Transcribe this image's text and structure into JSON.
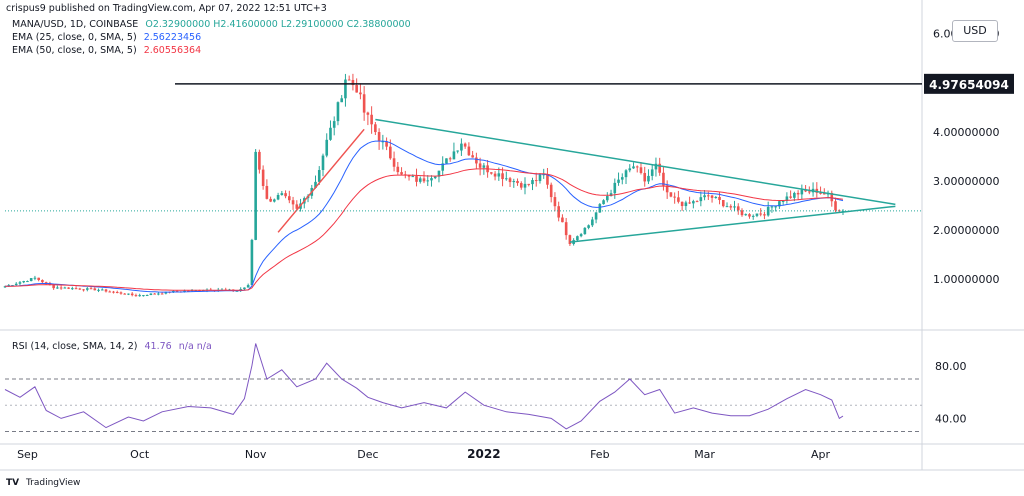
{
  "header": {
    "published": "crispus9 published on TradingView.com, Apr 07, 2022 12:51 UTC+3"
  },
  "legend": {
    "symbol": "MANA/USD, 1D, COINBASE",
    "ohlc": "O2.32900000 H2.41600000 L2.29100000 C2.38800000",
    "ema25_label": "EMA (25, close, 0, SMA, 5)",
    "ema25_value": "2.56223456",
    "ema50_label": "EMA (50, close, 0, SMA, 5)",
    "ema50_value": "2.60556364"
  },
  "rsi_legend": {
    "label": "RSI (14, close, SMA, 14, 2)",
    "value": "41.76",
    "na": "n/a n/a"
  },
  "currency": "USD",
  "resistance_label": "4.97654094",
  "footer": {
    "logo": "TV",
    "brand": "TradingView"
  },
  "colors": {
    "up": "#26a69a",
    "down": "#ef5350",
    "ema25": "#2962ff",
    "ema50": "#f23645",
    "rsi": "#7e57c2",
    "trend": "#26a69a",
    "res": "#131722"
  },
  "chart_data": [
    {
      "type": "candlestick",
      "title": "MANA/USD, 1D, COINBASE",
      "ylabel": "USD",
      "ylim": [
        0.0,
        6.4
      ],
      "yticks": [
        "1.00000000",
        "2.00000000",
        "3.00000000",
        "4.00000000",
        "6.00000000"
      ],
      "ytick_values": [
        1,
        2,
        3,
        4,
        6
      ],
      "xticks": [
        "Sep",
        "Oct",
        "Nov",
        "Dec",
        "2022",
        "Feb",
        "Mar",
        "Apr"
      ],
      "x_start": "2021-08-26",
      "x_end": "2022-04-07",
      "resistance": 4.97654094,
      "last_close": 2.388,
      "close_path": [
        [
          "2021-08-26",
          0.85
        ],
        [
          "2021-09-03",
          1.02
        ],
        [
          "2021-09-08",
          0.83
        ],
        [
          "2021-09-20",
          0.78
        ],
        [
          "2021-09-30",
          0.66
        ],
        [
          "2021-10-10",
          0.74
        ],
        [
          "2021-10-20",
          0.79
        ],
        [
          "2021-10-27",
          0.76
        ],
        [
          "2021-10-30",
          0.86
        ],
        [
          "2021-10-31",
          1.8
        ],
        [
          "2021-11-01",
          3.6
        ],
        [
          "2021-11-04",
          2.6
        ],
        [
          "2021-11-08",
          2.7
        ],
        [
          "2021-11-12",
          2.4
        ],
        [
          "2021-11-17",
          3.0
        ],
        [
          "2021-11-20",
          3.8
        ],
        [
          "2021-11-23",
          4.5
        ],
        [
          "2021-11-25",
          5.1
        ],
        [
          "2021-11-28",
          4.9
        ],
        [
          "2021-11-30",
          4.4
        ],
        [
          "2021-12-03",
          4.0
        ],
        [
          "2021-12-07",
          3.5
        ],
        [
          "2021-12-10",
          3.1
        ],
        [
          "2021-12-15",
          3.0
        ],
        [
          "2021-12-20",
          3.2
        ],
        [
          "2021-12-26",
          3.8
        ],
        [
          "2021-12-31",
          3.3
        ],
        [
          "2022-01-06",
          3.1
        ],
        [
          "2022-01-12",
          2.9
        ],
        [
          "2022-01-17",
          3.1
        ],
        [
          "2022-01-21",
          2.3
        ],
        [
          "2022-01-24",
          1.75
        ],
        [
          "2022-01-29",
          2.1
        ],
        [
          "2022-02-02",
          2.6
        ],
        [
          "2022-02-06",
          3.0
        ],
        [
          "2022-02-10",
          3.3
        ],
        [
          "2022-02-13",
          3.0
        ],
        [
          "2022-02-16",
          3.3
        ],
        [
          "2022-02-19",
          2.7
        ],
        [
          "2022-02-24",
          2.5
        ],
        [
          "2022-03-02",
          2.7
        ],
        [
          "2022-03-07",
          2.5
        ],
        [
          "2022-03-12",
          2.3
        ],
        [
          "2022-03-17",
          2.35
        ],
        [
          "2022-03-21",
          2.6
        ],
        [
          "2022-03-26",
          2.75
        ],
        [
          "2022-03-31",
          2.8
        ],
        [
          "2022-04-03",
          2.7
        ],
        [
          "2022-04-05",
          2.45
        ],
        [
          "2022-04-07",
          2.39
        ]
      ],
      "trendlines": [
        {
          "name": "upper",
          "from": [
            "2021-12-03",
            4.25
          ],
          "to": [
            "2022-04-21",
            2.52
          ]
        },
        {
          "name": "lower",
          "from": [
            "2022-01-24",
            1.75
          ],
          "to": [
            "2022-04-21",
            2.48
          ]
        },
        {
          "name": "early",
          "from": [
            "2021-11-07",
            1.95
          ],
          "to": [
            "2021-11-30",
            4.05
          ]
        }
      ]
    },
    {
      "type": "line",
      "title": "RSI (14, close, SMA, 14, 2)",
      "ylim": [
        22,
        105
      ],
      "yticks": [
        "40.00",
        "80.00"
      ],
      "ytick_values": [
        40,
        80
      ],
      "bands": [
        70,
        30
      ],
      "midline": 50,
      "last_value": 41.76,
      "series": [
        {
          "name": "RSI",
          "values": [
            [
              "2021-08-26",
              62
            ],
            [
              "2021-08-30",
              56
            ],
            [
              "2021-09-03",
              64
            ],
            [
              "2021-09-06",
              46
            ],
            [
              "2021-09-10",
              40
            ],
            [
              "2021-09-16",
              45
            ],
            [
              "2021-09-22",
              33
            ],
            [
              "2021-09-28",
              41
            ],
            [
              "2021-10-02",
              38
            ],
            [
              "2021-10-07",
              45
            ],
            [
              "2021-10-14",
              49
            ],
            [
              "2021-10-20",
              48
            ],
            [
              "2021-10-26",
              43
            ],
            [
              "2021-10-29",
              55
            ],
            [
              "2021-10-31",
              80
            ],
            [
              "2021-11-01",
              97
            ],
            [
              "2021-11-04",
              70
            ],
            [
              "2021-11-08",
              77
            ],
            [
              "2021-11-12",
              64
            ],
            [
              "2021-11-17",
              70
            ],
            [
              "2021-11-20",
              82
            ],
            [
              "2021-11-24",
              70
            ],
            [
              "2021-11-28",
              63
            ],
            [
              "2021-12-01",
              56
            ],
            [
              "2021-12-05",
              52
            ],
            [
              "2021-12-10",
              48
            ],
            [
              "2021-12-16",
              52
            ],
            [
              "2021-12-22",
              48
            ],
            [
              "2021-12-27",
              60
            ],
            [
              "2022-01-01",
              50
            ],
            [
              "2022-01-07",
              45
            ],
            [
              "2022-01-13",
              43
            ],
            [
              "2022-01-19",
              40
            ],
            [
              "2022-01-23",
              32
            ],
            [
              "2022-01-27",
              38
            ],
            [
              "2022-02-01",
              53
            ],
            [
              "2022-02-05",
              60
            ],
            [
              "2022-02-09",
              70
            ],
            [
              "2022-02-13",
              58
            ],
            [
              "2022-02-17",
              62
            ],
            [
              "2022-02-21",
              44
            ],
            [
              "2022-02-26",
              48
            ],
            [
              "2022-03-03",
              44
            ],
            [
              "2022-03-08",
              42
            ],
            [
              "2022-03-13",
              42
            ],
            [
              "2022-03-18",
              47
            ],
            [
              "2022-03-23",
              55
            ],
            [
              "2022-03-28",
              62
            ],
            [
              "2022-04-01",
              58
            ],
            [
              "2022-04-04",
              54
            ],
            [
              "2022-04-06",
              40
            ],
            [
              "2022-04-07",
              41.76
            ]
          ]
        }
      ],
      "xticks": [
        "Sep",
        "Oct",
        "Nov",
        "Dec",
        "2022",
        "Feb",
        "Mar",
        "Apr"
      ]
    }
  ]
}
